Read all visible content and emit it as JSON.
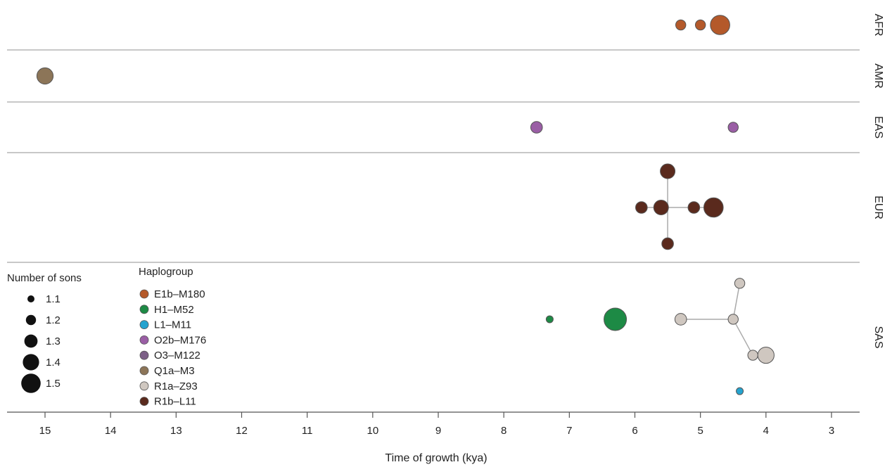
{
  "chart_data": {
    "type": "scatter",
    "xlabel": "Time of growth (kya)",
    "x_ticks": [
      15,
      14,
      13,
      12,
      11,
      10,
      9,
      8,
      7,
      6,
      5,
      4,
      3
    ],
    "xlim": [
      15.5,
      2.55
    ],
    "x_reversed": true,
    "panels": [
      "AFR",
      "AMR",
      "EAS",
      "EUR",
      "SAS"
    ],
    "size_legend": {
      "title": "Number of sons",
      "entries": [
        {
          "label": "1.1",
          "value": 1.1
        },
        {
          "label": "1.2",
          "value": 1.2
        },
        {
          "label": "1.3",
          "value": 1.3
        },
        {
          "label": "1.4",
          "value": 1.4
        },
        {
          "label": "1.5",
          "value": 1.5
        }
      ]
    },
    "color_legend": {
      "title": "Haplogroup",
      "entries": [
        {
          "label": "E1b–M180",
          "color": "#b4592a"
        },
        {
          "label": "H1–M52",
          "color": "#1d8a45"
        },
        {
          "label": "L1–M11",
          "color": "#25a3cf"
        },
        {
          "label": "O2b–M176",
          "color": "#9a5ea5"
        },
        {
          "label": "O3–M122",
          "color": "#7c5f86"
        },
        {
          "label": "Q1a–M3",
          "color": "#8c7558"
        },
        {
          "label": "R1a–Z93",
          "color": "#cfc7c0"
        },
        {
          "label": "R1b–L11",
          "color": "#5a2a1d"
        }
      ]
    },
    "points": [
      {
        "id": "afr1",
        "panel": "AFR",
        "lane": 0.5,
        "x": 5.3,
        "sons": 1.2,
        "haplogroup": "E1b–M180"
      },
      {
        "id": "afr2",
        "panel": "AFR",
        "lane": 0.5,
        "x": 5.0,
        "sons": 1.2,
        "haplogroup": "E1b–M180"
      },
      {
        "id": "afr3",
        "panel": "AFR",
        "lane": 0.5,
        "x": 4.7,
        "sons": 1.5,
        "haplogroup": "E1b–M180"
      },
      {
        "id": "amr1",
        "panel": "AMR",
        "lane": 0.5,
        "x": 15.0,
        "sons": 1.4,
        "haplogroup": "Q1a–M3"
      },
      {
        "id": "eas1",
        "panel": "EAS",
        "lane": 0.5,
        "x": 7.5,
        "sons": 1.25,
        "haplogroup": "O2b–M176"
      },
      {
        "id": "eas2",
        "panel": "EAS",
        "lane": 0.5,
        "x": 4.5,
        "sons": 1.2,
        "haplogroup": "O2b–M176"
      },
      {
        "id": "eur_top",
        "panel": "EUR",
        "lane": 0.17,
        "x": 5.5,
        "sons": 1.35,
        "haplogroup": "R1b–L11"
      },
      {
        "id": "eur_l",
        "panel": "EUR",
        "lane": 0.5,
        "x": 5.9,
        "sons": 1.25,
        "haplogroup": "R1b–L11"
      },
      {
        "id": "eur_c",
        "panel": "EUR",
        "lane": 0.5,
        "x": 5.6,
        "sons": 1.35,
        "haplogroup": "R1b–L11"
      },
      {
        "id": "eur_r",
        "panel": "EUR",
        "lane": 0.5,
        "x": 5.1,
        "sons": 1.25,
        "haplogroup": "R1b–L11"
      },
      {
        "id": "eur_big",
        "panel": "EUR",
        "lane": 0.5,
        "x": 4.8,
        "sons": 1.5,
        "haplogroup": "R1b–L11"
      },
      {
        "id": "eur_bot",
        "panel": "EUR",
        "lane": 0.83,
        "x": 5.5,
        "sons": 1.25,
        "haplogroup": "R1b–L11"
      },
      {
        "id": "sas_h1s",
        "panel": "SAS",
        "lane": 0.38,
        "x": 7.3,
        "sons": 1.1,
        "haplogroup": "H1–M52"
      },
      {
        "id": "sas_h1b",
        "panel": "SAS",
        "lane": 0.38,
        "x": 6.3,
        "sons": 1.6,
        "haplogroup": "H1–M52"
      },
      {
        "id": "sas_r1a_top",
        "panel": "SAS",
        "lane": 0.14,
        "x": 4.4,
        "sons": 1.2,
        "haplogroup": "R1a–Z93"
      },
      {
        "id": "sas_r1a_l",
        "panel": "SAS",
        "lane": 0.38,
        "x": 5.3,
        "sons": 1.25,
        "haplogroup": "R1a–Z93"
      },
      {
        "id": "sas_r1a_c",
        "panel": "SAS",
        "lane": 0.38,
        "x": 4.5,
        "sons": 1.2,
        "haplogroup": "R1a–Z93"
      },
      {
        "id": "sas_r1a_br1",
        "panel": "SAS",
        "lane": 0.62,
        "x": 4.2,
        "sons": 1.2,
        "haplogroup": "R1a–Z93"
      },
      {
        "id": "sas_r1a_br2",
        "panel": "SAS",
        "lane": 0.62,
        "x": 4.0,
        "sons": 1.4,
        "haplogroup": "R1a–Z93"
      },
      {
        "id": "sas_l1",
        "panel": "SAS",
        "lane": 0.86,
        "x": 4.4,
        "sons": 1.1,
        "haplogroup": "L1–M11"
      }
    ],
    "links": [
      [
        "eur_l",
        "eur_big"
      ],
      [
        "eur_top",
        "eur_bot"
      ],
      [
        "sas_r1a_top",
        "sas_r1a_c"
      ],
      [
        "sas_r1a_l",
        "sas_r1a_c"
      ],
      [
        "sas_r1a_c",
        "sas_r1a_br1"
      ],
      [
        "sas_r1a_br1",
        "sas_r1a_br2"
      ]
    ]
  }
}
